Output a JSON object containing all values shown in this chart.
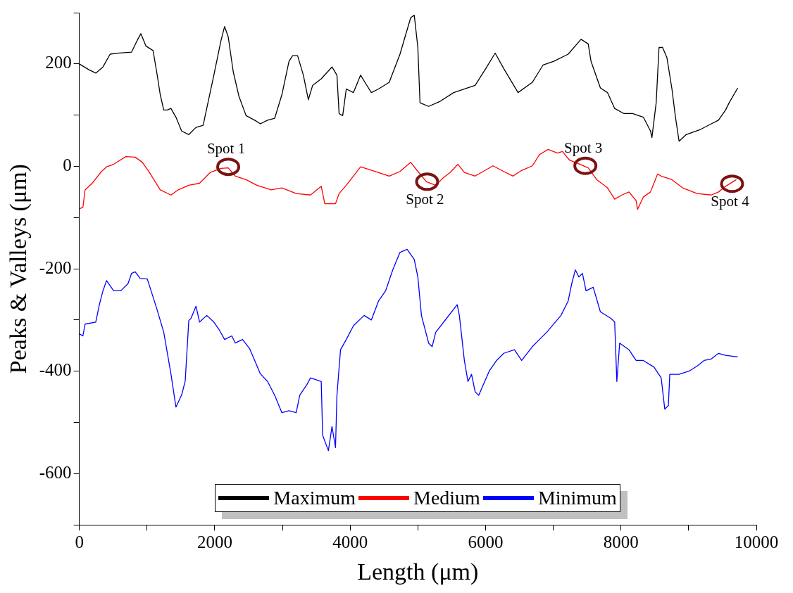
{
  "chart_data": {
    "type": "line",
    "xlabel": "Length (μm)",
    "ylabel": "Peaks & Valleys (μm)",
    "xlim": [
      0,
      10000
    ],
    "xticks": [
      0,
      {
        "value": 1000,
        "label": null
      },
      2000,
      {
        "value": 3000,
        "label": null
      },
      4000,
      {
        "value": 5000,
        "label": null
      },
      6000,
      {
        "value": 7000,
        "label": null
      },
      8000,
      {
        "value": 9000,
        "label": null
      },
      10000
    ],
    "ylim": [
      -700,
      300
    ],
    "yticks": [
      {
        "value": -700,
        "label": null
      },
      -600,
      {
        "value": -500,
        "label": null
      },
      -400,
      {
        "value": -300,
        "label": null
      },
      -200,
      {
        "value": -100,
        "label": null
      },
      0,
      {
        "value": 100,
        "label": null
      },
      200,
      {
        "value": 300,
        "label": null
      }
    ],
    "grid": false,
    "legend": "bottom",
    "marker": "none",
    "line_style": "solid",
    "series": [
      {
        "name": "Maximum",
        "color": "#000000",
        "x": [
          0,
          137,
          243,
          349,
          455,
          560,
          772,
          856,
          909,
          983,
          1089,
          1142,
          1195,
          1247,
          1300,
          1353,
          1427,
          1511,
          1617,
          1723,
          1829,
          1882,
          1987,
          2093,
          2146,
          2199,
          2273,
          2357,
          2463,
          2590,
          2674,
          2780,
          2886,
          2992,
          3097,
          3150,
          3224,
          3309,
          3383,
          3446,
          3573,
          3732,
          3805,
          3837,
          3890,
          3943,
          4049,
          4154,
          4228,
          4313,
          4419,
          4577,
          4736,
          4894,
          4947,
          5000,
          5032,
          5159,
          5317,
          5529,
          5846,
          6004,
          6142,
          6268,
          6480,
          6691,
          6850,
          7008,
          7220,
          7410,
          7516,
          7558,
          7696,
          7801,
          7907,
          8044,
          8171,
          8330,
          8436,
          8457,
          8520,
          8562,
          8615,
          8679,
          8753,
          8805,
          8858,
          8964,
          9070,
          9175,
          9334,
          9440,
          9545,
          9598,
          9725
        ],
        "values": [
          200,
          189,
          182,
          194,
          219,
          221,
          223,
          246,
          259,
          235,
          226,
          185,
          140,
          110,
          110,
          113,
          96,
          69,
          62,
          76,
          80,
          113,
          178,
          246,
          273,
          253,
          185,
          137,
          99,
          90,
          83,
          90,
          94,
          140,
          205,
          216,
          216,
          178,
          130,
          158,
          171,
          194,
          178,
          103,
          99,
          151,
          144,
          178,
          162,
          144,
          151,
          164,
          219,
          290,
          295,
          232,
          124,
          117,
          126,
          144,
          158,
          191,
          221,
          191,
          144,
          164,
          198,
          205,
          219,
          248,
          239,
          205,
          153,
          144,
          113,
          103,
          103,
          96,
          69,
          56,
          124,
          232,
          232,
          212,
          151,
          96,
          49,
          62,
          67,
          72,
          83,
          90,
          110,
          124,
          153
        ]
      },
      {
        "name": "Medium",
        "color": "#ff0000",
        "x": [
          0,
          53,
          85,
          190,
          328,
          402,
          507,
          687,
          825,
          930,
          1036,
          1195,
          1353,
          1459,
          1617,
          1776,
          1934,
          2093,
          2199,
          2304,
          2463,
          2622,
          2833,
          2992,
          3203,
          3414,
          3573,
          3626,
          3784,
          3837,
          3943,
          4154,
          4366,
          4577,
          4736,
          4894,
          5000,
          5127,
          5264,
          5370,
          5476,
          5592,
          5687,
          5846,
          6110,
          6268,
          6406,
          6533,
          6691,
          6797,
          6924,
          7061,
          7135,
          7241,
          7378,
          7516,
          7643,
          7801,
          7907,
          8013,
          8118,
          8224,
          8245,
          8330,
          8436,
          8541,
          8594,
          8753,
          8911,
          9123,
          9334,
          9440,
          9545,
          9704
        ],
        "values": [
          -83,
          -80,
          -46,
          -33,
          -10,
          -1,
          4,
          19,
          18,
          8,
          -12,
          -46,
          -56,
          -46,
          -37,
          -33,
          -12,
          -4,
          -3,
          -19,
          -26,
          -37,
          -46,
          -42,
          -53,
          -56,
          -39,
          -73,
          -73,
          -53,
          -37,
          -1,
          -10,
          -19,
          -10,
          8,
          -10,
          -30,
          -37,
          -23,
          -12,
          4,
          -12,
          -19,
          1,
          -10,
          -19,
          -8,
          1,
          23,
          33,
          26,
          29,
          12,
          5,
          -3,
          -26,
          -42,
          -64,
          -56,
          -50,
          -67,
          -84,
          -60,
          -50,
          -15,
          -19,
          -26,
          -42,
          -53,
          -56,
          -50,
          -39,
          -26
        ]
      },
      {
        "name": "Minimum",
        "color": "#0000ff",
        "x": [
          0,
          53,
          85,
          243,
          296,
          349,
          402,
          507,
          613,
          719,
          772,
          825,
          899,
          1004,
          1142,
          1247,
          1353,
          1427,
          1512,
          1564,
          1617,
          1649,
          1723,
          1776,
          1882,
          1987,
          2061,
          2146,
          2252,
          2304,
          2410,
          2516,
          2674,
          2780,
          2886,
          2992,
          3097,
          3203,
          3256,
          3362,
          3414,
          3573,
          3594,
          3679,
          3732,
          3784,
          3805,
          3858,
          3943,
          4049,
          4207,
          4313,
          4419,
          4524,
          4630,
          4736,
          4841,
          4947,
          5000,
          5053,
          5159,
          5211,
          5264,
          5423,
          5581,
          5613,
          5687,
          5740,
          5793,
          5846,
          5899,
          6057,
          6163,
          6268,
          6427,
          6533,
          6691,
          6903,
          7114,
          7220,
          7273,
          7326,
          7378,
          7431,
          7484,
          7590,
          7696,
          7854,
          7907,
          7939,
          7981,
          8118,
          8224,
          8330,
          8488,
          8594,
          8647,
          8700,
          8721,
          8858,
          9017,
          9123,
          9228,
          9334,
          9440,
          9545,
          9725
        ],
        "values": [
          -327,
          -331,
          -308,
          -304,
          -270,
          -243,
          -223,
          -243,
          -243,
          -229,
          -209,
          -206,
          -219,
          -220,
          -277,
          -324,
          -405,
          -470,
          -446,
          -419,
          -301,
          -297,
          -273,
          -304,
          -291,
          -304,
          -318,
          -338,
          -331,
          -345,
          -338,
          -356,
          -405,
          -420,
          -447,
          -481,
          -477,
          -481,
          -447,
          -426,
          -413,
          -420,
          -525,
          -555,
          -508,
          -549,
          -447,
          -358,
          -338,
          -311,
          -291,
          -300,
          -263,
          -243,
          -202,
          -168,
          -162,
          -182,
          -216,
          -291,
          -345,
          -352,
          -324,
          -297,
          -270,
          -291,
          -379,
          -420,
          -406,
          -440,
          -447,
          -399,
          -379,
          -365,
          -358,
          -379,
          -352,
          -324,
          -291,
          -263,
          -229,
          -202,
          -216,
          -209,
          -243,
          -236,
          -284,
          -297,
          -304,
          -420,
          -345,
          -358,
          -379,
          -379,
          -392,
          -413,
          -474,
          -467,
          -406,
          -406,
          -399,
          -390,
          -379,
          -376,
          -365,
          -369,
          -372
        ]
      }
    ],
    "annotations": [
      {
        "text": "Spot 1",
        "x": 2199,
        "y": -1
      },
      {
        "text": "Spot 2",
        "x": 5137,
        "y": -30
      },
      {
        "text": "Spot 3",
        "x": 7474,
        "y": 1
      },
      {
        "text": "Spot 4",
        "x": 9641,
        "y": -34
      }
    ]
  }
}
